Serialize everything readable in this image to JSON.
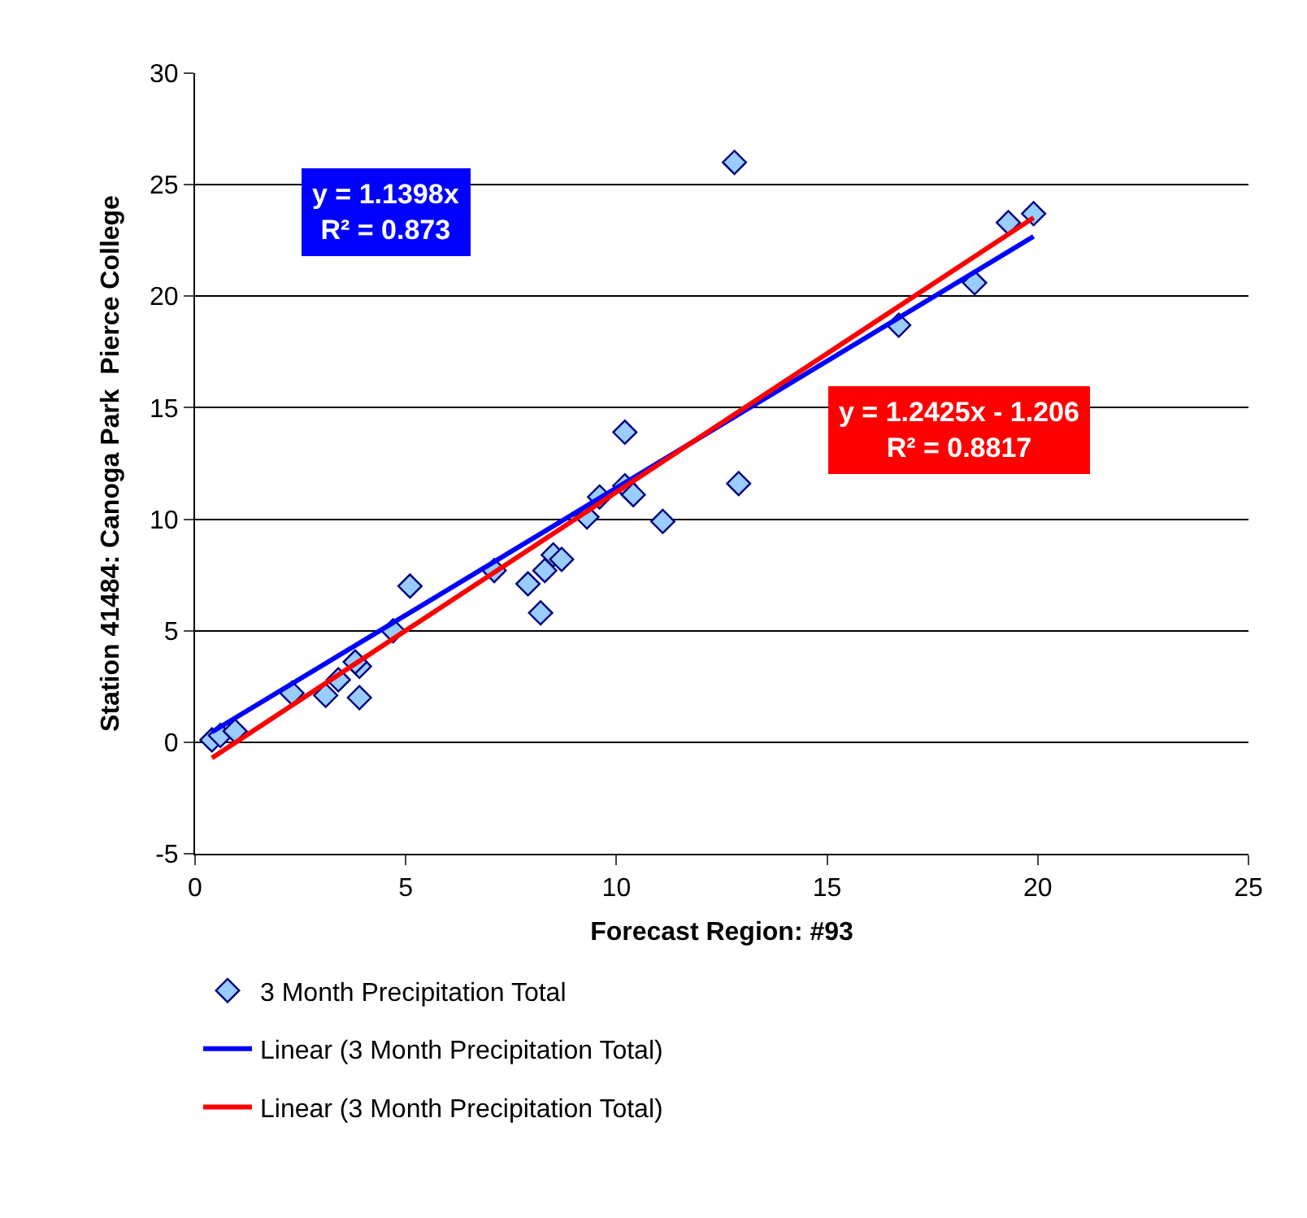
{
  "chart_data": {
    "type": "scatter",
    "xlabel": "Forecast Region: #93",
    "ylabel": "Station 41484: Canoga Park  Pierce College",
    "xlim": [
      0,
      25
    ],
    "xticks": [
      0,
      5,
      10,
      15,
      20,
      25
    ],
    "ylim": [
      -5,
      30
    ],
    "yticks": [
      -5,
      0,
      5,
      10,
      15,
      20,
      25,
      30
    ],
    "grid": "y",
    "legend": "bottom",
    "marker": "diamond",
    "series": [
      {
        "name": "3 Month Precipitation Total",
        "color": "#99ccff",
        "x": [
          0.4,
          0.6,
          0.95,
          2.3,
          3.1,
          3.4,
          3.9,
          3.9,
          3.8,
          4.7,
          5.1,
          7.1,
          7.9,
          8.2,
          8.3,
          8.5,
          8.7,
          9.3,
          9.6,
          10.2,
          10.2,
          10.4,
          11.1,
          12.8,
          12.9,
          16.7,
          18.5,
          19.3,
          19.9
        ],
        "values": [
          0.1,
          0.3,
          0.5,
          2.2,
          2.1,
          2.8,
          2.0,
          3.4,
          3.6,
          5.0,
          7.0,
          7.7,
          7.1,
          5.8,
          7.7,
          8.4,
          8.2,
          10.1,
          11.0,
          13.9,
          11.5,
          11.1,
          9.9,
          26.0,
          11.6,
          18.7,
          20.6,
          23.3,
          23.7
        ]
      },
      {
        "name": "Linear (3 Month Precipitation Total)",
        "type": "line",
        "marker": "none",
        "line_style": "solid",
        "color": "#0000ff",
        "x": [
          0.4,
          19.9
        ],
        "values": [
          0.46,
          22.68
        ]
      },
      {
        "name": "Linear (3 Month Precipitation Total)",
        "type": "line",
        "marker": "none",
        "line_style": "solid",
        "color": "#ff0000",
        "x": [
          0.4,
          19.9
        ],
        "values": [
          -0.71,
          23.52
        ]
      }
    ],
    "annotations": [
      "y = 1.1398x\nR² = 0.873",
      "y = 1.2425x - 1.206\nR² = 0.8817"
    ]
  }
}
